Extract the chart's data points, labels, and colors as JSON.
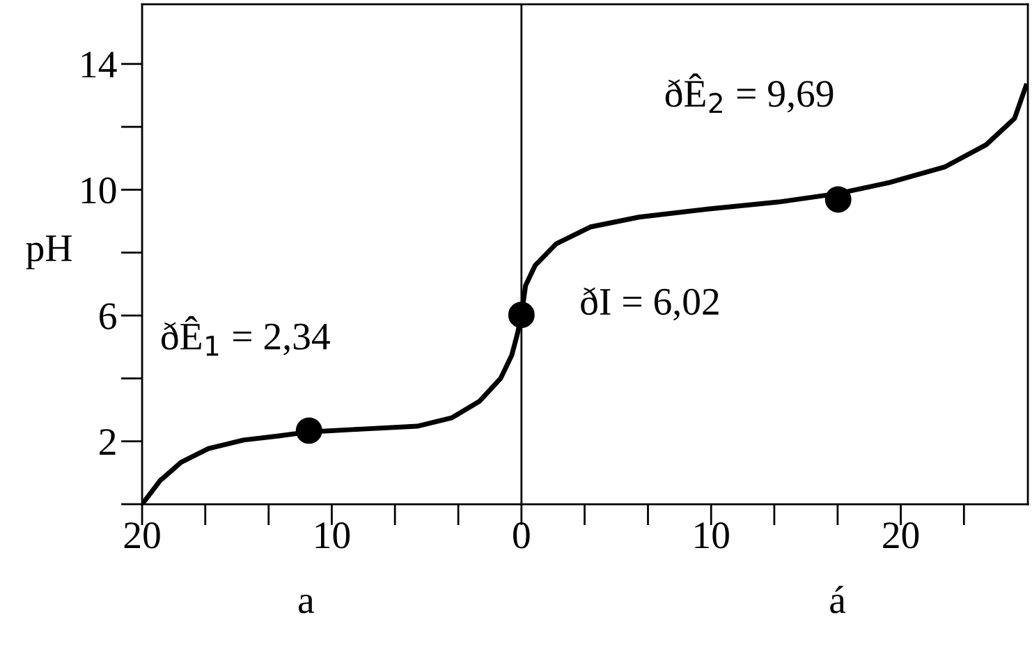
{
  "chart_data": {
    "type": "line",
    "ylabel": "pH",
    "x": [
      -20,
      -19.05,
      -17.95,
      -16.5,
      -14.65,
      -12.8,
      -11.2,
      -8.4,
      -5.5,
      -3.66,
      -2.2,
      -1.1,
      -0.51,
      -0.22,
      0,
      0.22,
      0.73,
      1.83,
      3.66,
      6.2,
      9.9,
      13.55,
      16.7,
      19.4,
      22.3,
      24.5,
      26.0,
      26.6
    ],
    "series": [
      {
        "color": "#000000",
        "values": [
          0,
          0.75,
          1.33,
          1.77,
          2.04,
          2.17,
          2.3,
          2.39,
          2.48,
          2.75,
          3.28,
          4.0,
          4.74,
          5.4,
          6.02,
          6.96,
          7.6,
          8.28,
          8.82,
          9.13,
          9.39,
          9.61,
          9.88,
          10.23,
          10.72,
          11.43,
          12.27,
          13.3
        ]
      },
      {
        "type": "scatter",
        "marker": "circle",
        "color": "#000000",
        "x": [
          -11.2,
          0,
          16.7
        ],
        "values": [
          2.34,
          6.02,
          9.69
        ]
      }
    ],
    "xlim": [
      -20,
      26.7
    ],
    "ylim": [
      0,
      15.9
    ],
    "xticks": [
      {
        "value": -20,
        "label": "20"
      },
      {
        "value": -16.67,
        "label": null
      },
      {
        "value": -13.33,
        "label": null
      },
      {
        "value": -10,
        "label": "10"
      },
      {
        "value": -6.67,
        "label": null
      },
      {
        "value": -3.33,
        "label": null
      },
      0,
      {
        "value": 3.33,
        "label": null
      },
      {
        "value": 6.67,
        "label": null
      },
      10,
      {
        "value": 13.33,
        "label": null
      },
      {
        "value": 16.67,
        "label": null
      },
      20,
      {
        "value": 23.33,
        "label": null
      }
    ],
    "yticks": [
      {
        "value": 0,
        "label": null
      },
      2,
      {
        "value": 4,
        "label": null
      },
      6,
      {
        "value": 8,
        "label": null
      },
      10,
      {
        "value": 12,
        "label": null
      },
      14
    ],
    "ref_lines": [
      {
        "axis": "x",
        "value": 0,
        "color": "#000000"
      }
    ],
    "annotations": [
      {
        "text": "ðÊ$_{1}$ = 2,34",
        "x": -11.2,
        "y": 2.34
      },
      {
        "text": "ðI = 6,02",
        "x": 0,
        "y": 6.02
      },
      {
        "text": "ðÊ$_{2}$ = 9,69",
        "x": 16.7,
        "y": 9.69
      },
      "a",
      "á"
    ],
    "grid": false,
    "legend": false
  }
}
